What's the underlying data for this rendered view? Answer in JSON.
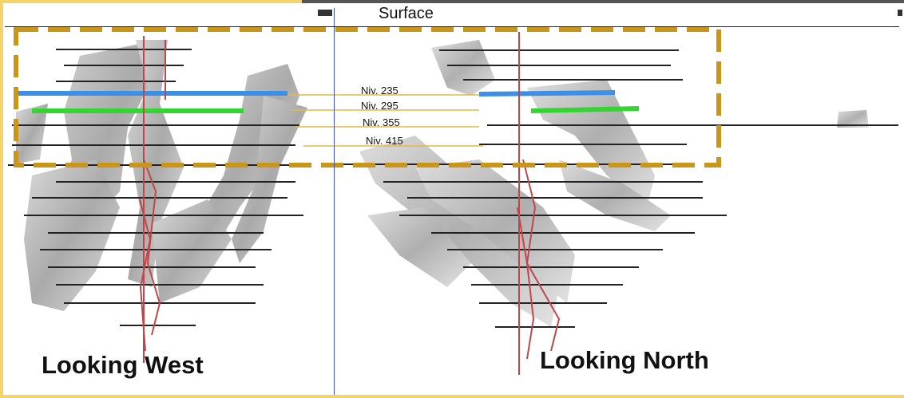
{
  "surface_label": "Surface",
  "levels": [
    {
      "label": "Niv. 235",
      "color": "#3d8fe6"
    },
    {
      "label": "Niv. 295",
      "color": "#35d435"
    },
    {
      "label": "Niv. 355",
      "color": "#e8b847"
    },
    {
      "label": "Niv. 415",
      "color": "#e8b847"
    }
  ],
  "views": {
    "west": "Looking West",
    "north": "Looking North"
  },
  "colors": {
    "frame": "#f5d36b",
    "highlight_box": "#c9961a",
    "shaft": "#c0464a",
    "orebody": "#9a9a9a",
    "level_lines": "#222222",
    "divider": "#3b4fb8"
  }
}
